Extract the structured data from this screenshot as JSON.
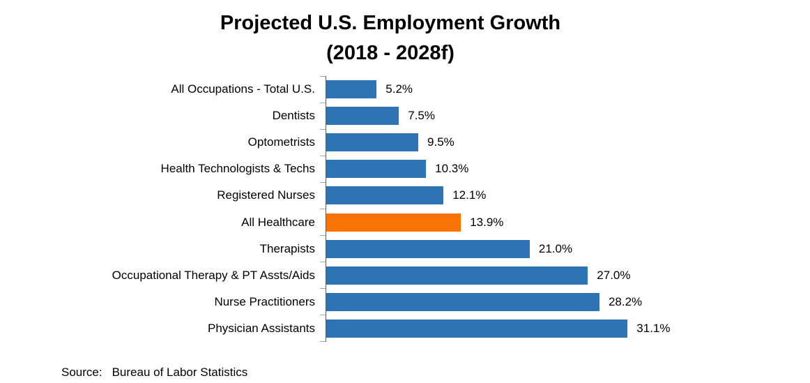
{
  "title": {
    "line1": "Projected U.S. Employment Growth",
    "line2": "(2018 - 2028f)"
  },
  "source": {
    "label": "Source:",
    "text": "Bureau of Labor Statistics"
  },
  "colors": {
    "bar_default": "#2e74b5",
    "bar_highlight": "#fa7306",
    "axis_line": "#595959",
    "tick": "#a6a6a6"
  },
  "chart_data": {
    "type": "bar",
    "orientation": "horizontal",
    "title": "Projected U.S. Employment Growth (2018 - 2028f)",
    "categories": [
      "All Occupations - Total U.S.",
      "Dentists",
      "Optometrists",
      "Health Technologists & Techs",
      "Registered Nurses",
      "All Healthcare",
      "Therapists",
      "Occupational Therapy & PT Assts/Aids",
      "Nurse Practitioners",
      "Physician Assistants"
    ],
    "values": [
      5.2,
      7.5,
      9.5,
      10.3,
      12.1,
      13.9,
      21.0,
      27.0,
      28.2,
      31.1
    ],
    "value_labels": [
      "5.2%",
      "7.5%",
      "9.5%",
      "10.3%",
      "12.1%",
      "13.9%",
      "21.0%",
      "27.0%",
      "28.2%",
      "31.1%"
    ],
    "highlight_index": 5,
    "highlight_category": "All Healthcare",
    "xlim": [
      0,
      33
    ],
    "grid": false,
    "legend": false,
    "data_labels": true,
    "source": "Bureau of Labor Statistics"
  }
}
